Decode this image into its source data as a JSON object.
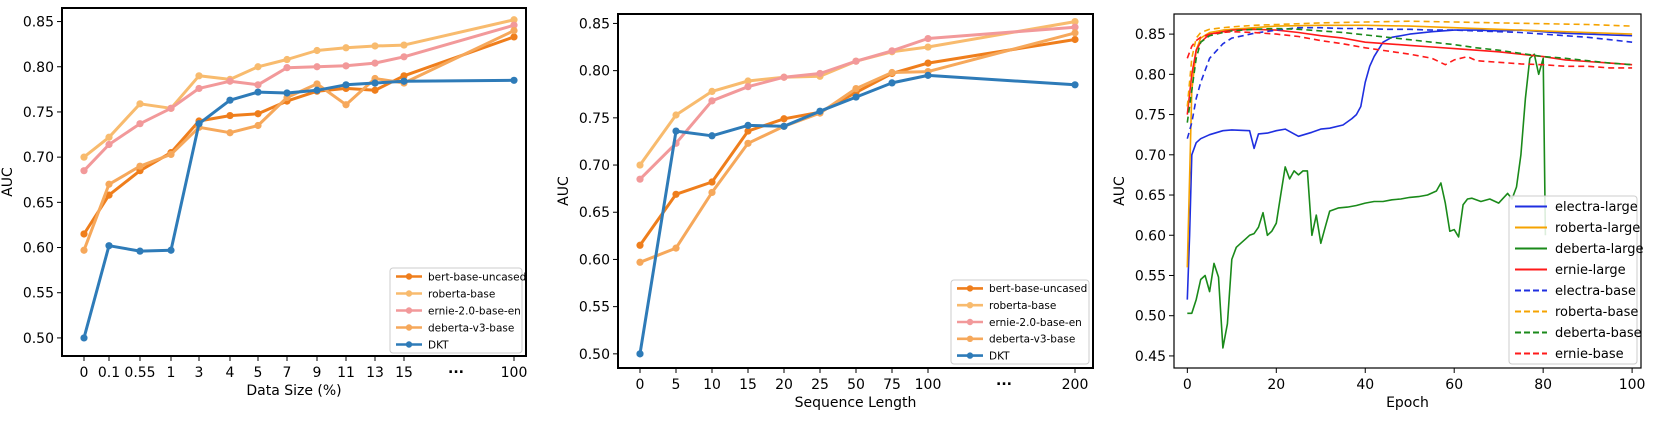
{
  "chart_data": [
    {
      "type": "line",
      "xlabel": "Data Size (%)",
      "ylabel": "AUC",
      "x_ticks": [
        "0",
        "0.1",
        "0.55",
        "1",
        "3",
        "4",
        "5",
        "7",
        "9",
        "11",
        "13",
        "15",
        "...",
        "100"
      ],
      "ylim": [
        0.48,
        0.865
      ],
      "y_ticks": [
        "0.50",
        "0.55",
        "0.60",
        "0.65",
        "0.70",
        "0.75",
        "0.80",
        "0.85"
      ],
      "legend_position": "lower-right",
      "series": [
        {
          "name": "bert-base-uncased",
          "color": "#ef7e1c",
          "x": [
            0,
            0.1,
            0.55,
            1,
            3,
            4,
            5,
            7,
            9,
            11,
            13,
            15,
            100
          ],
          "values": [
            0.615,
            0.658,
            0.685,
            0.705,
            0.74,
            0.746,
            0.748,
            0.762,
            0.773,
            0.776,
            0.774,
            0.79,
            0.833
          ]
        },
        {
          "name": "roberta-base",
          "color": "#f8bb6e",
          "x": [
            0,
            0.1,
            0.55,
            1,
            3,
            4,
            5,
            7,
            9,
            11,
            13,
            15,
            100
          ],
          "values": [
            0.7,
            0.722,
            0.759,
            0.754,
            0.79,
            0.786,
            0.8,
            0.808,
            0.818,
            0.821,
            0.823,
            0.824,
            0.852
          ]
        },
        {
          "name": "ernie-2.0-base-en",
          "color": "#f2999a",
          "x": [
            0,
            0.1,
            0.55,
            1,
            3,
            4,
            5,
            7,
            9,
            11,
            13,
            15,
            100
          ],
          "values": [
            0.685,
            0.714,
            0.737,
            0.754,
            0.776,
            0.784,
            0.78,
            0.799,
            0.8,
            0.801,
            0.804,
            0.811,
            0.846
          ]
        },
        {
          "name": "deberta-v3-base",
          "color": "#f6a85b",
          "x": [
            0,
            0.1,
            0.55,
            1,
            3,
            4,
            5,
            7,
            9,
            11,
            13,
            15,
            100
          ],
          "values": [
            0.597,
            0.67,
            0.69,
            0.703,
            0.733,
            0.727,
            0.735,
            0.766,
            0.781,
            0.758,
            0.787,
            0.782,
            0.84
          ]
        },
        {
          "name": "DKT",
          "color": "#2e7bb8",
          "x": [
            0,
            0.1,
            0.55,
            1,
            3,
            4,
            5,
            7,
            9,
            11,
            13,
            15,
            100
          ],
          "values": [
            0.5,
            0.602,
            0.596,
            0.597,
            0.737,
            0.763,
            0.772,
            0.771,
            0.774,
            0.78,
            0.782,
            0.784,
            0.785
          ]
        }
      ]
    },
    {
      "type": "line",
      "xlabel": "Sequence Length",
      "ylabel": "AUC",
      "x_ticks": [
        "0",
        "5",
        "10",
        "15",
        "20",
        "25",
        "50",
        "75",
        "100",
        "...",
        "200"
      ],
      "ylim": [
        0.485,
        0.86
      ],
      "y_ticks": [
        "0.50",
        "0.55",
        "0.60",
        "0.65",
        "0.70",
        "0.75",
        "0.80",
        "0.85"
      ],
      "legend_position": "lower-right",
      "series": [
        {
          "name": "bert-base-uncased",
          "color": "#ef7e1c",
          "x": [
            0,
            5,
            10,
            15,
            20,
            25,
            50,
            75,
            100,
            200
          ],
          "values": [
            0.615,
            0.669,
            0.682,
            0.736,
            0.749,
            0.756,
            0.777,
            0.797,
            0.808,
            0.833
          ]
        },
        {
          "name": "roberta-base",
          "color": "#f8bb6e",
          "x": [
            0,
            5,
            10,
            15,
            20,
            25,
            50,
            75,
            100,
            200
          ],
          "values": [
            0.7,
            0.753,
            0.778,
            0.789,
            0.793,
            0.794,
            0.81,
            0.82,
            0.825,
            0.852
          ]
        },
        {
          "name": "ernie-2.0-base-en",
          "color": "#f2999a",
          "x": [
            0,
            5,
            10,
            15,
            20,
            25,
            50,
            75,
            100,
            200
          ],
          "values": [
            0.685,
            0.723,
            0.768,
            0.783,
            0.793,
            0.797,
            0.81,
            0.821,
            0.834,
            0.846
          ]
        },
        {
          "name": "deberta-v3-base",
          "color": "#f6a85b",
          "x": [
            0,
            5,
            10,
            15,
            20,
            25,
            50,
            75,
            100,
            200
          ],
          "values": [
            0.597,
            0.612,
            0.671,
            0.723,
            0.741,
            0.755,
            0.781,
            0.798,
            0.799,
            0.84
          ]
        },
        {
          "name": "DKT",
          "color": "#2e7bb8",
          "x": [
            0,
            5,
            10,
            15,
            20,
            25,
            50,
            75,
            100,
            200
          ],
          "values": [
            0.5,
            0.736,
            0.731,
            0.742,
            0.741,
            0.757,
            0.772,
            0.787,
            0.795,
            0.785
          ]
        }
      ]
    },
    {
      "type": "line",
      "xlabel": "Epoch",
      "ylabel": "AUC",
      "xlim": [
        -3,
        102
      ],
      "ylim": [
        0.435,
        0.875
      ],
      "x_ticks": [
        "0",
        "20",
        "40",
        "60",
        "80",
        "100"
      ],
      "y_ticks": [
        "0.45",
        "0.50",
        "0.55",
        "0.60",
        "0.65",
        "0.70",
        "0.75",
        "0.80",
        "0.85"
      ],
      "legend_position": "lower-right",
      "series": [
        {
          "name": "electra-large",
          "color": "#1f2fe0",
          "dashed": false,
          "x": [
            0,
            0.5,
            1,
            2,
            3,
            5,
            8,
            10,
            14,
            15,
            16,
            18,
            20,
            22,
            24,
            25,
            28,
            30,
            32,
            35,
            37,
            38,
            39,
            40,
            41,
            42,
            44,
            46,
            50,
            55,
            60,
            65,
            70,
            75,
            80,
            85,
            90,
            95,
            100
          ],
          "values": [
            0.52,
            0.6,
            0.7,
            0.715,
            0.72,
            0.725,
            0.73,
            0.731,
            0.73,
            0.708,
            0.726,
            0.727,
            0.73,
            0.732,
            0.726,
            0.723,
            0.728,
            0.732,
            0.733,
            0.737,
            0.745,
            0.75,
            0.76,
            0.79,
            0.81,
            0.822,
            0.84,
            0.846,
            0.85,
            0.853,
            0.855,
            0.855,
            0.854,
            0.855,
            0.853,
            0.851,
            0.85,
            0.849,
            0.848
          ]
        },
        {
          "name": "roberta-large",
          "color": "#f5a300",
          "dashed": false,
          "x": [
            0,
            1,
            2,
            3,
            5,
            8,
            10,
            15,
            20,
            30,
            40,
            50,
            60,
            70,
            80,
            90,
            100
          ],
          "values": [
            0.56,
            0.78,
            0.83,
            0.845,
            0.852,
            0.855,
            0.856,
            0.858,
            0.86,
            0.861,
            0.861,
            0.86,
            0.858,
            0.856,
            0.854,
            0.852,
            0.85
          ]
        },
        {
          "name": "deberta-large",
          "color": "#1a8a1a",
          "dashed": false,
          "x": [
            0,
            1,
            2,
            3,
            4,
            5,
            6,
            7,
            8,
            9,
            10,
            11,
            12,
            13,
            14,
            15,
            16,
            17,
            18,
            19,
            20,
            21,
            22,
            23,
            24,
            25,
            26,
            27,
            28,
            29,
            30,
            31,
            32,
            34,
            36,
            38,
            40,
            42,
            44,
            46,
            48,
            50,
            52,
            54,
            56,
            57,
            58,
            59,
            60,
            61,
            62,
            63,
            64,
            66,
            68,
            70,
            72,
            73,
            74,
            75,
            76,
            77,
            78,
            79,
            80,
            80.5
          ],
          "values": [
            0.503,
            0.503,
            0.52,
            0.545,
            0.55,
            0.53,
            0.565,
            0.548,
            0.46,
            0.49,
            0.57,
            0.585,
            0.59,
            0.595,
            0.6,
            0.602,
            0.61,
            0.628,
            0.6,
            0.605,
            0.615,
            0.65,
            0.685,
            0.67,
            0.68,
            0.675,
            0.68,
            0.68,
            0.6,
            0.625,
            0.59,
            0.61,
            0.63,
            0.634,
            0.635,
            0.637,
            0.64,
            0.642,
            0.642,
            0.644,
            0.645,
            0.647,
            0.648,
            0.65,
            0.655,
            0.665,
            0.64,
            0.605,
            0.607,
            0.598,
            0.638,
            0.645,
            0.646,
            0.642,
            0.645,
            0.64,
            0.652,
            0.645,
            0.66,
            0.7,
            0.77,
            0.82,
            0.825,
            0.8,
            0.82,
            0.6
          ]
        },
        {
          "name": "ernie-large",
          "color": "#ff1a1a",
          "dashed": false,
          "x": [
            0,
            1,
            2,
            3,
            5,
            8,
            10,
            15,
            20,
            25,
            30,
            35,
            40,
            45,
            50,
            55,
            60,
            65,
            70,
            75,
            80,
            85,
            90,
            95,
            100
          ],
          "values": [
            0.75,
            0.8,
            0.83,
            0.84,
            0.85,
            0.853,
            0.855,
            0.856,
            0.855,
            0.852,
            0.848,
            0.845,
            0.84,
            0.838,
            0.836,
            0.834,
            0.832,
            0.83,
            0.828,
            0.825,
            0.822,
            0.818,
            0.816,
            0.814,
            0.812
          ]
        },
        {
          "name": "electra-base",
          "color": "#1f2fe0",
          "dashed": true,
          "x": [
            0,
            1,
            2,
            3,
            5,
            8,
            10,
            15,
            20,
            25,
            30,
            35,
            40,
            45,
            50,
            55,
            60,
            65,
            70,
            75,
            80,
            85,
            90,
            95,
            100
          ],
          "values": [
            0.72,
            0.74,
            0.77,
            0.79,
            0.82,
            0.838,
            0.845,
            0.851,
            0.855,
            0.858,
            0.858,
            0.857,
            0.857,
            0.856,
            0.856,
            0.855,
            0.855,
            0.854,
            0.853,
            0.852,
            0.85,
            0.848,
            0.846,
            0.843,
            0.84
          ]
        },
        {
          "name": "roberta-base",
          "color": "#f5a300",
          "dashed": true,
          "x": [
            0,
            1,
            2,
            3,
            5,
            8,
            10,
            15,
            20,
            30,
            40,
            50,
            60,
            70,
            80,
            90,
            100
          ],
          "values": [
            0.76,
            0.82,
            0.845,
            0.852,
            0.856,
            0.858,
            0.859,
            0.861,
            0.862,
            0.864,
            0.865,
            0.866,
            0.865,
            0.864,
            0.863,
            0.862,
            0.86
          ]
        },
        {
          "name": "deberta-base",
          "color": "#1a8a1a",
          "dashed": true,
          "x": [
            0,
            1,
            2,
            3,
            5,
            8,
            10,
            15,
            20,
            25,
            30,
            35,
            40,
            45,
            50,
            55,
            60,
            65,
            70,
            75,
            80,
            85,
            90,
            95,
            100
          ],
          "values": [
            0.74,
            0.78,
            0.82,
            0.84,
            0.848,
            0.852,
            0.854,
            0.856,
            0.857,
            0.856,
            0.854,
            0.852,
            0.849,
            0.846,
            0.843,
            0.84,
            0.837,
            0.833,
            0.83,
            0.826,
            0.822,
            0.82,
            0.817,
            0.814,
            0.812
          ]
        },
        {
          "name": "ernie-base",
          "color": "#ff1a1a",
          "dashed": true,
          "x": [
            0,
            1,
            2,
            3,
            5,
            8,
            10,
            15,
            20,
            25,
            30,
            35,
            40,
            45,
            50,
            55,
            58,
            60,
            63,
            65,
            70,
            75,
            80,
            85,
            90,
            95,
            100
          ],
          "values": [
            0.82,
            0.835,
            0.842,
            0.846,
            0.85,
            0.852,
            0.853,
            0.852,
            0.85,
            0.847,
            0.842,
            0.838,
            0.833,
            0.829,
            0.825,
            0.82,
            0.812,
            0.818,
            0.822,
            0.817,
            0.815,
            0.813,
            0.812,
            0.81,
            0.81,
            0.808,
            0.808
          ]
        }
      ]
    }
  ]
}
